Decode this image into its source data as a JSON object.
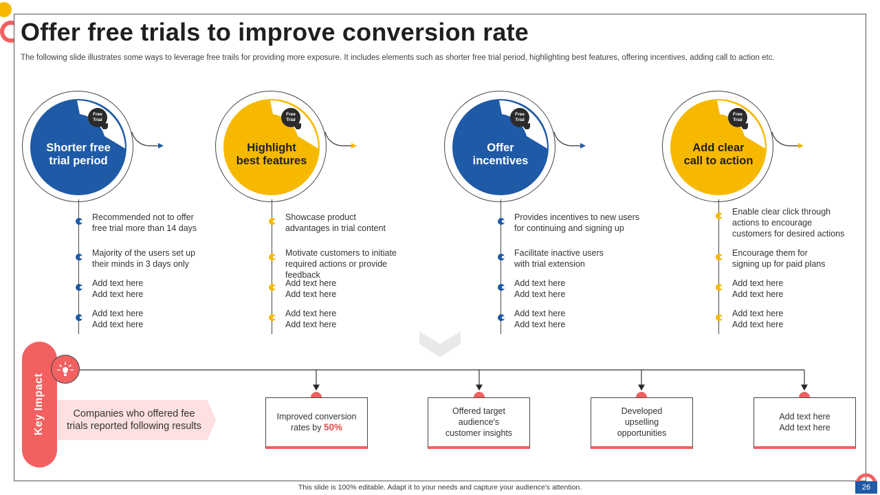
{
  "title": "Offer free trials to improve conversion rate",
  "subtitle": "The following slide illustrates some ways to leverage free trails for providing more exposure. It includes elements such as shorter free trial period, highlighting best features, offering incentives, adding call to action etc.",
  "colors": {
    "blue": "#1f5aa6",
    "yellow": "#f7b900",
    "red": "#f26060"
  },
  "icon_text": "Free\nTrial",
  "columns": [
    {
      "label": "Shorter free\ntrial period",
      "color": "blue",
      "bullets": [
        "Recommended  not to offer\nfree trial more than 14 days",
        "Majority of the users set up\ntheir minds in 3 days only",
        "Add text here\nAdd text here",
        "Add text here\nAdd text here"
      ]
    },
    {
      "label": "Highlight\nbest features",
      "color": "yellow",
      "bullets": [
        "Showcase product\nadvantages  in trial content",
        "Motivate  customers to initiate\nrequired actions or provide  feedback",
        "Add text here\nAdd text here",
        "Add text here\nAdd text here"
      ]
    },
    {
      "label": "Offer\nincentives",
      "color": "blue",
      "bullets": [
        "Provides incentives to new users\nfor continuing and signing up",
        "Facilitate inactive users\nwith trial extension",
        "Add text here\nAdd text here",
        "Add text here\nAdd text here"
      ]
    },
    {
      "label": "Add clear\ncall to action",
      "color": "yellow",
      "bullets": [
        "Enable clear click through\nactions to encourage\ncustomers for desired actions",
        "Encourage them for\nsigning up for paid plans",
        "Add text here\nAdd text here",
        "Add text here\nAdd text here"
      ]
    }
  ],
  "key_impact": {
    "label": "Key Impact",
    "banner": "Companies who offered fee trials reported following results",
    "results": [
      {
        "text": "Improved  conversion\nrates by ",
        "highlight": "50%"
      },
      {
        "text": "Offered  target\naudience's\ncustomer insights",
        "highlight": ""
      },
      {
        "text": "Developed\nupselling\nopportunities",
        "highlight": ""
      },
      {
        "text": "Add text here\nAdd text here",
        "highlight": ""
      }
    ]
  },
  "footer": "This slide is 100% editable.  Adapt it to your needs and capture your audience's attention.",
  "page_number": "26"
}
